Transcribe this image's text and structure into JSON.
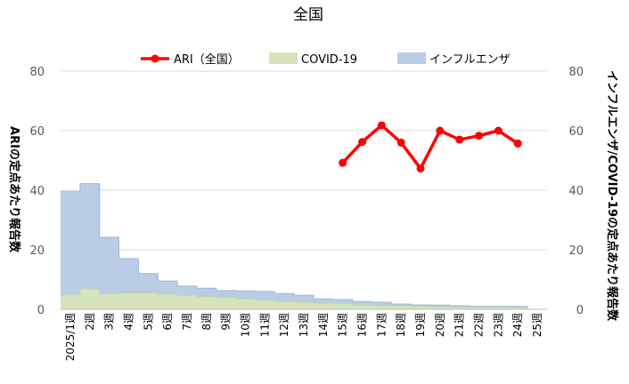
{
  "chart_data": {
    "type": "area",
    "title": "全国",
    "ylabel_left": "ARIの定点あたり報告数",
    "ylabel_right": "インフルエンザ/COVID-19の定点あたり報告数",
    "ylim_left": [
      0,
      80
    ],
    "ylim_right": [
      0,
      80
    ],
    "yticks_left": [
      "0",
      "20",
      "40",
      "60",
      "80"
    ],
    "yticks_right": [
      "0",
      "20",
      "40",
      "60",
      "80"
    ],
    "categories": [
      "2025/1週",
      "2週",
      "3週",
      "4週",
      "5週",
      "6週",
      "7週",
      "8週",
      "9週",
      "10週",
      "11週",
      "12週",
      "13週",
      "14週",
      "15週",
      "16週",
      "17週",
      "18週",
      "19週",
      "20週",
      "21週",
      "22週",
      "23週",
      "24週",
      "25週"
    ],
    "legend_position": "top",
    "grid": true,
    "series": [
      {
        "name": "ARI（全国）",
        "type": "line",
        "axis": "left",
        "color": "#ff0000",
        "values": [
          null,
          null,
          null,
          null,
          null,
          null,
          null,
          null,
          null,
          null,
          null,
          null,
          null,
          null,
          49.2,
          56.2,
          61.8,
          56.0,
          47.3,
          60.0,
          57.0,
          58.3,
          60.0,
          55.7,
          null
        ]
      },
      {
        "name": "COVID-19",
        "type": "area",
        "axis": "right",
        "color": "#d6e3bc",
        "values": [
          4.8,
          6.8,
          5.2,
          5.5,
          5.5,
          5.1,
          4.7,
          4.3,
          3.9,
          3.5,
          3.1,
          2.7,
          2.4,
          2.1,
          1.8,
          1.5,
          1.3,
          1.1,
          1.0,
          0.9,
          0.8,
          0.7,
          0.7,
          0.6,
          0.0
        ]
      },
      {
        "name": "インフルエンザ",
        "type": "area",
        "axis": "right",
        "color": "#b9cde5",
        "values": [
          39.5,
          42.2,
          24.2,
          17.0,
          12.0,
          9.5,
          7.8,
          7.1,
          6.3,
          6.2,
          6.0,
          5.3,
          4.7,
          3.5,
          3.3,
          2.6,
          2.4,
          1.8,
          1.5,
          1.4,
          1.2,
          1.0,
          1.0,
          1.0,
          0.0
        ]
      }
    ]
  }
}
